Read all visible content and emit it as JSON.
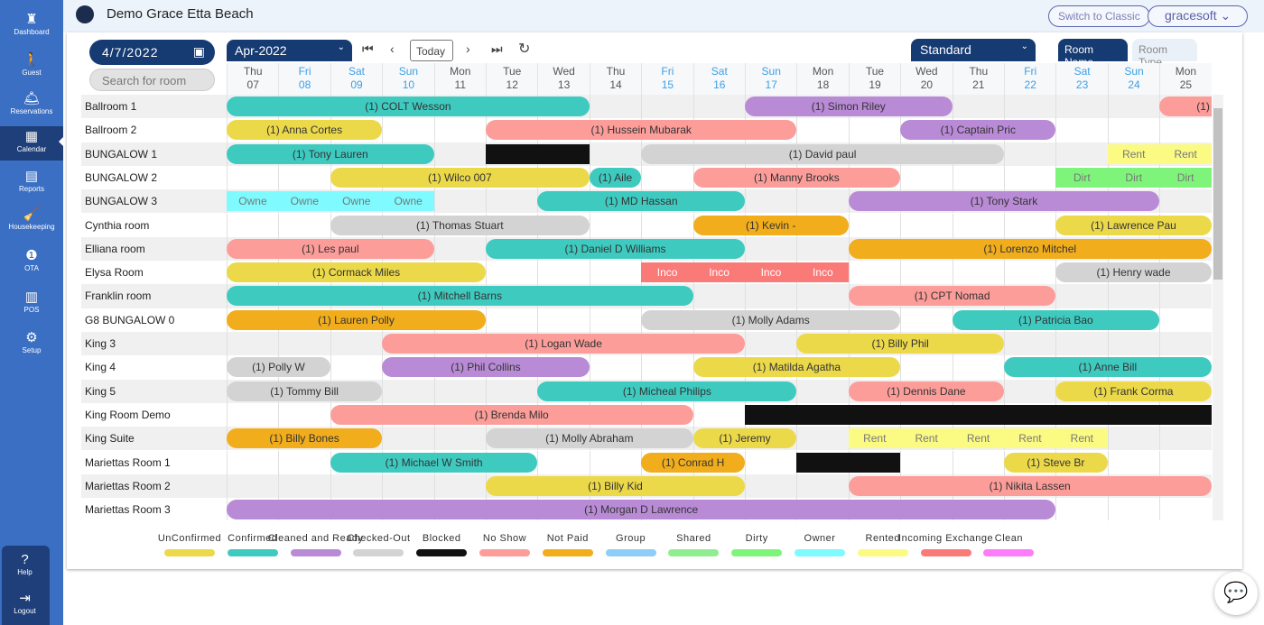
{
  "sidebar": {
    "items": [
      {
        "label": "Dashboard",
        "icon": "dashboard-icon",
        "glyph": "♜"
      },
      {
        "label": "Guest",
        "icon": "walking-person-icon",
        "glyph": "🚶"
      },
      {
        "label": "Reservations",
        "icon": "bell-icon",
        "glyph": "🛎"
      },
      {
        "label": "Calendar",
        "icon": "calendar-icon",
        "glyph": "▦",
        "active": true
      },
      {
        "label": "Reports",
        "icon": "report-icon",
        "glyph": "▤"
      },
      {
        "label": "Housekeeping",
        "icon": "housekeeping-icon",
        "glyph": "🧹"
      },
      {
        "label": "OTA",
        "icon": "ota-icon",
        "glyph": "❶"
      },
      {
        "label": "POS",
        "icon": "pos-icon",
        "glyph": "▥"
      },
      {
        "label": "Setup",
        "icon": "gear-icon",
        "glyph": "⚙"
      }
    ],
    "bottom": [
      {
        "label": "Help",
        "icon": "help-icon",
        "glyph": "?"
      },
      {
        "label": "Logout",
        "icon": "logout-icon",
        "glyph": "⇥"
      }
    ]
  },
  "header": {
    "title": "Demo Grace Etta Beach",
    "switch_label": "Switch to Classic",
    "user_label": "gracesoft ⌄"
  },
  "toolbar": {
    "date": "4/7/2022",
    "search_placeholder": "Search for room",
    "month": "Apr-2022",
    "today": "Today",
    "room_category": "Standard",
    "view_tabs": [
      "Room Name",
      "Room Type"
    ]
  },
  "days": [
    [
      "Thu",
      "07"
    ],
    [
      "Fri",
      "08"
    ],
    [
      "Sat",
      "09"
    ],
    [
      "Sun",
      "10"
    ],
    [
      "Mon",
      "11"
    ],
    [
      "Tue",
      "12"
    ],
    [
      "Wed",
      "13"
    ],
    [
      "Thu",
      "14"
    ],
    [
      "Fri",
      "15"
    ],
    [
      "Sat",
      "16"
    ],
    [
      "Sun",
      "17"
    ],
    [
      "Mon",
      "18"
    ],
    [
      "Tue",
      "19"
    ],
    [
      "Wed",
      "20"
    ],
    [
      "Thu",
      "21"
    ],
    [
      "Fri",
      "22"
    ],
    [
      "Sat",
      "23"
    ],
    [
      "Sun",
      "24"
    ],
    [
      "Mon",
      "25"
    ]
  ],
  "statuses": {
    "unconfirmed": {
      "label": "UnConfirmed",
      "color": "#ecd94a"
    },
    "confirmed": {
      "label": "Confirmed",
      "color": "#3fcac0"
    },
    "cleaned": {
      "label": "Cleaned and Ready",
      "color": "#b98bd6"
    },
    "checkedout": {
      "label": "Checked-Out",
      "color": "#d3d3d3"
    },
    "blocked": {
      "label": "Blocked",
      "color": "#111111"
    },
    "noshow": {
      "label": "No Show",
      "color": "#fc9d9a"
    },
    "notpaid": {
      "label": "Not Paid",
      "color": "#f1ad1c"
    },
    "group": {
      "label": "Group",
      "color": "#8ecdf7"
    },
    "shared": {
      "label": "Shared",
      "color": "#90ee90"
    },
    "dirty": {
      "label": "Dirty",
      "color": "#7ef57a"
    },
    "owner": {
      "label": "Owner",
      "color": "#7ffaff"
    },
    "rented": {
      "label": "Rented",
      "color": "#fbfb84"
    },
    "incoming": {
      "label": "Incoming Exchange",
      "color": "#fa7a78"
    },
    "clean": {
      "label": "Clean",
      "color": "#fd7cf9"
    }
  },
  "rooms": [
    {
      "name": "Ballroom 1",
      "bookings": [
        {
          "s": 0,
          "n": 7,
          "t": "(1) COLT Wesson",
          "st": "confirmed"
        },
        {
          "s": 10,
          "n": 4,
          "t": "(1) Simon Riley",
          "st": "cleaned"
        },
        {
          "s": 18,
          "n": 2,
          "t": "(1) Ba",
          "st": "noshow"
        }
      ]
    },
    {
      "name": "Ballroom 2",
      "bookings": [
        {
          "s": 0,
          "n": 3,
          "t": "(1) Anna Cortes",
          "st": "unconfirmed"
        },
        {
          "s": 5,
          "n": 6,
          "t": "(1) Hussein Mubarak",
          "st": "noshow"
        },
        {
          "s": 13,
          "n": 3,
          "t": "(1) Captain Pric",
          "st": "cleaned"
        }
      ]
    },
    {
      "name": "BUNGALOW 1",
      "bookings": [
        {
          "s": 0,
          "n": 4,
          "t": "(1) Tony Lauren",
          "st": "confirmed"
        },
        {
          "s": 5,
          "n": 2,
          "t": "",
          "st": "blocked"
        },
        {
          "s": 8,
          "n": 7,
          "t": "(1) David paul",
          "st": "checkedout"
        },
        {
          "s": 17,
          "n": 2,
          "t": "Rent",
          "st": "rented",
          "cells": true
        }
      ]
    },
    {
      "name": "BUNGALOW 2",
      "bookings": [
        {
          "s": 2,
          "n": 5,
          "t": "(1) Wilco 007",
          "st": "unconfirmed"
        },
        {
          "s": 7,
          "n": 1,
          "t": "(1) Aile",
          "st": "confirmed"
        },
        {
          "s": 9,
          "n": 4,
          "t": "(1) Manny Brooks",
          "st": "noshow"
        },
        {
          "s": 16,
          "n": 3,
          "t": "Dirt",
          "st": "dirty",
          "cells": true
        }
      ]
    },
    {
      "name": "BUNGALOW 3",
      "bookings": [
        {
          "s": 0,
          "n": 4,
          "t": "Owne",
          "st": "owner",
          "cells": true
        },
        {
          "s": 6,
          "n": 4,
          "t": "(1) MD Hassan",
          "st": "confirmed"
        },
        {
          "s": 12,
          "n": 6,
          "t": "(1) Tony Stark",
          "st": "cleaned"
        }
      ]
    },
    {
      "name": "Cynthia room",
      "bookings": [
        {
          "s": 2,
          "n": 5,
          "t": "(1) Thomas Stuart",
          "st": "checkedout"
        },
        {
          "s": 9,
          "n": 3,
          "t": "(1) Kevin -",
          "st": "notpaid"
        },
        {
          "s": 16,
          "n": 3,
          "t": "(1) Lawrence Pau",
          "st": "unconfirmed"
        }
      ]
    },
    {
      "name": "Elliana room",
      "bookings": [
        {
          "s": 0,
          "n": 4,
          "t": "(1) Les paul",
          "st": "noshow"
        },
        {
          "s": 5,
          "n": 5,
          "t": "(1) Daniel D Williams",
          "st": "confirmed"
        },
        {
          "s": 12,
          "n": 7,
          "t": "(1) Lorenzo Mitchel",
          "st": "notpaid"
        }
      ]
    },
    {
      "name": "Elysa Room",
      "bookings": [
        {
          "s": 0,
          "n": 5,
          "t": "(1) Cormack Miles",
          "st": "unconfirmed"
        },
        {
          "s": 8,
          "n": 4,
          "t": "Inco",
          "st": "incoming",
          "cells": true
        },
        {
          "s": 16,
          "n": 3,
          "t": "(1) Henry wade",
          "st": "checkedout"
        }
      ]
    },
    {
      "name": "Franklin room",
      "bookings": [
        {
          "s": 0,
          "n": 9,
          "t": "(1) Mitchell Barns",
          "st": "confirmed"
        },
        {
          "s": 12,
          "n": 4,
          "t": "(1) CPT Nomad",
          "st": "noshow"
        }
      ]
    },
    {
      "name": "G8 BUNGALOW 0",
      "bookings": [
        {
          "s": 0,
          "n": 5,
          "t": "(1) Lauren Polly",
          "st": "notpaid"
        },
        {
          "s": 8,
          "n": 5,
          "t": "(1) Molly Adams",
          "st": "checkedout"
        },
        {
          "s": 14,
          "n": 4,
          "t": "(1) Patricia Bao",
          "st": "confirmed"
        }
      ]
    },
    {
      "name": "King 3",
      "bookings": [
        {
          "s": 3,
          "n": 7,
          "t": "(1) Logan Wade",
          "st": "noshow"
        },
        {
          "s": 11,
          "n": 4,
          "t": "(1) Billy Phil",
          "st": "unconfirmed"
        }
      ]
    },
    {
      "name": "King 4",
      "bookings": [
        {
          "s": 0,
          "n": 2,
          "t": "(1) Polly W",
          "st": "checkedout"
        },
        {
          "s": 3,
          "n": 4,
          "t": "(1) Phil Collins",
          "st": "cleaned"
        },
        {
          "s": 9,
          "n": 4,
          "t": "(1) Matilda Agatha",
          "st": "unconfirmed"
        },
        {
          "s": 15,
          "n": 4,
          "t": "(1) Anne Bill",
          "st": "confirmed"
        }
      ]
    },
    {
      "name": "King 5",
      "bookings": [
        {
          "s": 0,
          "n": 3,
          "t": "(1) Tommy Bill",
          "st": "checkedout"
        },
        {
          "s": 6,
          "n": 5,
          "t": "(1) Micheal Philips",
          "st": "confirmed"
        },
        {
          "s": 12,
          "n": 3,
          "t": "(1) Dennis Dane",
          "st": "noshow"
        },
        {
          "s": 16,
          "n": 3,
          "t": "(1) Frank Corma",
          "st": "unconfirmed"
        }
      ]
    },
    {
      "name": "King Room Demo",
      "bookings": [
        {
          "s": 2,
          "n": 7,
          "t": "(1) Brenda Milo",
          "st": "noshow"
        },
        {
          "s": 10,
          "n": 9,
          "t": "",
          "st": "blocked"
        }
      ]
    },
    {
      "name": "King Suite",
      "bookings": [
        {
          "s": 0,
          "n": 3,
          "t": "(1) Billy Bones",
          "st": "notpaid"
        },
        {
          "s": 5,
          "n": 4,
          "t": "(1) Molly Abraham",
          "st": "checkedout"
        },
        {
          "s": 9,
          "n": 2,
          "t": "(1) Jeremy",
          "st": "unconfirmed"
        },
        {
          "s": 12,
          "n": 5,
          "t": "Rent",
          "st": "rented",
          "cells": true
        }
      ]
    },
    {
      "name": "Mariettas Room 1",
      "bookings": [
        {
          "s": 2,
          "n": 4,
          "t": "(1) Michael W Smith",
          "st": "confirmed"
        },
        {
          "s": 8,
          "n": 2,
          "t": "(1) Conrad H",
          "st": "notpaid"
        },
        {
          "s": 11,
          "n": 2,
          "t": "",
          "st": "blocked"
        },
        {
          "s": 15,
          "n": 2,
          "t": "(1) Steve Br",
          "st": "unconfirmed"
        }
      ]
    },
    {
      "name": "Mariettas Room 2",
      "bookings": [
        {
          "s": 5,
          "n": 5,
          "t": "(1) Billy Kid",
          "st": "unconfirmed"
        },
        {
          "s": 12,
          "n": 7,
          "t": "(1) Nikita Lassen",
          "st": "noshow"
        }
      ]
    },
    {
      "name": "Mariettas Room 3",
      "bookings": [
        {
          "s": 0,
          "n": 16,
          "t": "(1) Morgan D Lawrence",
          "st": "cleaned"
        }
      ]
    }
  ],
  "legend": [
    "unconfirmed",
    "confirmed",
    "cleaned",
    "checkedout",
    "blocked",
    "noshow",
    "notpaid",
    "group",
    "shared",
    "dirty",
    "owner",
    "rented",
    "incoming",
    "clean"
  ]
}
